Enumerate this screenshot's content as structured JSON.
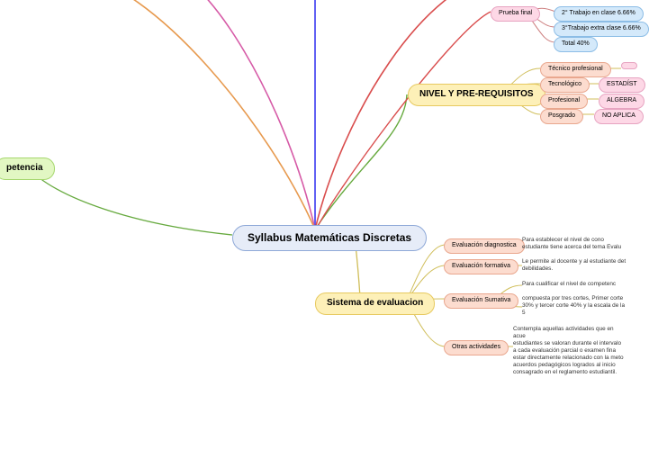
{
  "root": {
    "label": "Syllabus Matemáticas Discretas"
  },
  "left_branch": {
    "label": "petencia"
  },
  "nivel": {
    "label": "NIVEL Y PRE-REQUISITOS",
    "rows": [
      {
        "l": "Técnico profesional",
        "r": ""
      },
      {
        "l": "Tecnológico",
        "r": "ESTADÍST"
      },
      {
        "l": "Profesional",
        "r": "ALGEBRA"
      },
      {
        "l": "Posgrado",
        "r": "NO APLICA"
      }
    ]
  },
  "prueba": {
    "label": "Prueba final",
    "rows": [
      "2° Trabajo en clase   6.66%",
      "3°Trabajo extra clase  6.66%",
      "Total 40%"
    ]
  },
  "sistema": {
    "label": "Sistema de evaluacion",
    "items": [
      {
        "l": "Evaluación diagnostica",
        "t": "Para establecer el nivel de cono\nestudiante tiene acerca del tema Evalu"
      },
      {
        "l": "Evaluación formativa",
        "t": "Le permite al docente y al estudiante det\ndebilidades."
      },
      {
        "l": "Evaluación Sumativa",
        "t": "Para  cualificar  el  nivel  de   competenc\n \ncompuesta  por tres cortes, Primer  corte\n30% y tercer corte 40% y la escala de la\n5"
      },
      {
        "l": "Otras actividades",
        "t": "Contempla aquellas actividades que en acue\nestudiantes  se valoran  durante  el intervalo\na cada  evaluación  parcial  o  examen  fina\nestar directamente relacionado con la meto\nacuerdos  pedagógicos  logrados  al inicio\nconsagrado en el reglamento estudiantil."
      }
    ]
  },
  "colors": {
    "upward_lines": [
      "#3a3af0",
      "#d65ba7",
      "#e79a4f",
      "#d94d4d",
      "#67aa3f"
    ]
  }
}
